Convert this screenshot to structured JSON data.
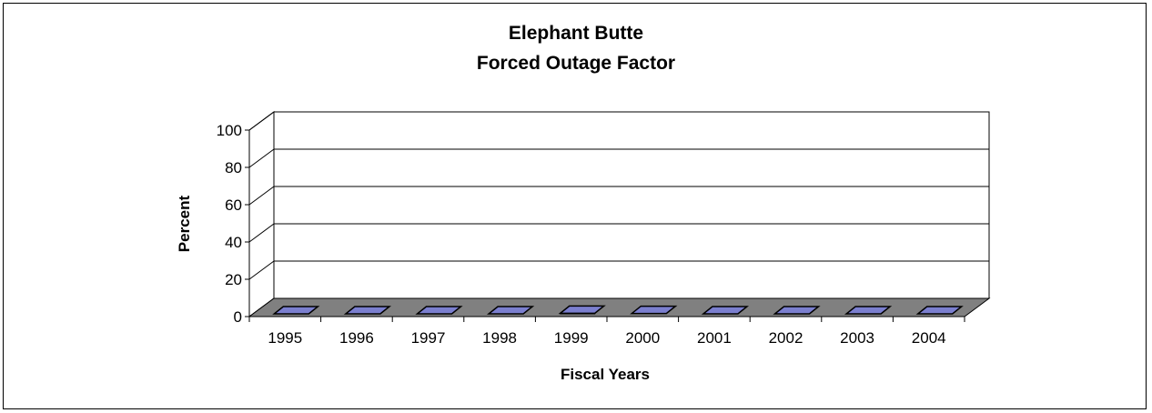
{
  "chart_data": {
    "type": "bar",
    "title": "Elephant Butte",
    "subtitle": "Forced Outage Factor",
    "xlabel": "Fiscal Years",
    "ylabel": "Percent",
    "categories": [
      "1995",
      "1996",
      "1997",
      "1998",
      "1999",
      "2000",
      "2001",
      "2002",
      "2003",
      "2004"
    ],
    "values": [
      0,
      0,
      0,
      0,
      0.3,
      0.2,
      0,
      0,
      0,
      0
    ],
    "ylim": [
      0,
      100
    ],
    "yticks": [
      "0",
      "20",
      "40",
      "60",
      "80",
      "100"
    ],
    "grid": true,
    "legend": "none",
    "three_d": true,
    "colors": {
      "bar": "#7b7fcf",
      "floor": "#808080",
      "grid": "#000000"
    }
  }
}
